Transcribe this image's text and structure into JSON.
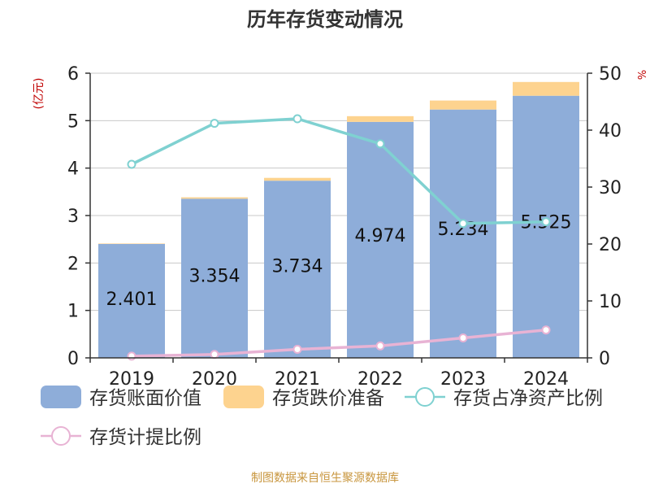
{
  "chart_data": {
    "type": "bar",
    "title": "历年存货变动情况",
    "categories": [
      "2019",
      "2020",
      "2021",
      "2022",
      "2023",
      "2024"
    ],
    "ylabel_left": "(亿元)",
    "ylabel_right": "%",
    "ylim_left": [
      0,
      6
    ],
    "ylim_right": [
      0,
      50
    ],
    "yticks_left": [
      "0",
      "1",
      "2",
      "3",
      "4",
      "5",
      "6"
    ],
    "yticks_right": [
      "0",
      "10",
      "20",
      "30",
      "40",
      "50"
    ],
    "grid": true,
    "legend_position": "bottom",
    "series": [
      {
        "name": "存货账面价值",
        "kind": "bar",
        "axis": "left",
        "color": "#8eadd9",
        "values": [
          2.401,
          3.354,
          3.734,
          4.974,
          5.234,
          5.525
        ],
        "labels": [
          "2.401",
          "3.354",
          "3.734",
          "4.974",
          "5.234",
          "5.525"
        ]
      },
      {
        "name": "存货跌价准备",
        "kind": "bar-stacked",
        "axis": "left",
        "color": "#fdd38f",
        "values": [
          0.01,
          0.03,
          0.06,
          0.12,
          0.19,
          0.29
        ]
      },
      {
        "name": "存货占净资产比例",
        "kind": "line",
        "axis": "right",
        "color": "#7fd1d1",
        "values": [
          34.0,
          41.2,
          42.0,
          37.6,
          23.6,
          23.9
        ]
      },
      {
        "name": "存货计提比例",
        "kind": "line",
        "axis": "right",
        "color": "#e8b3d4",
        "values": [
          0.3,
          0.6,
          1.5,
          2.1,
          3.5,
          4.9
        ]
      }
    ]
  },
  "footer": {
    "source": "制图数据来自恒生聚源数据库"
  }
}
